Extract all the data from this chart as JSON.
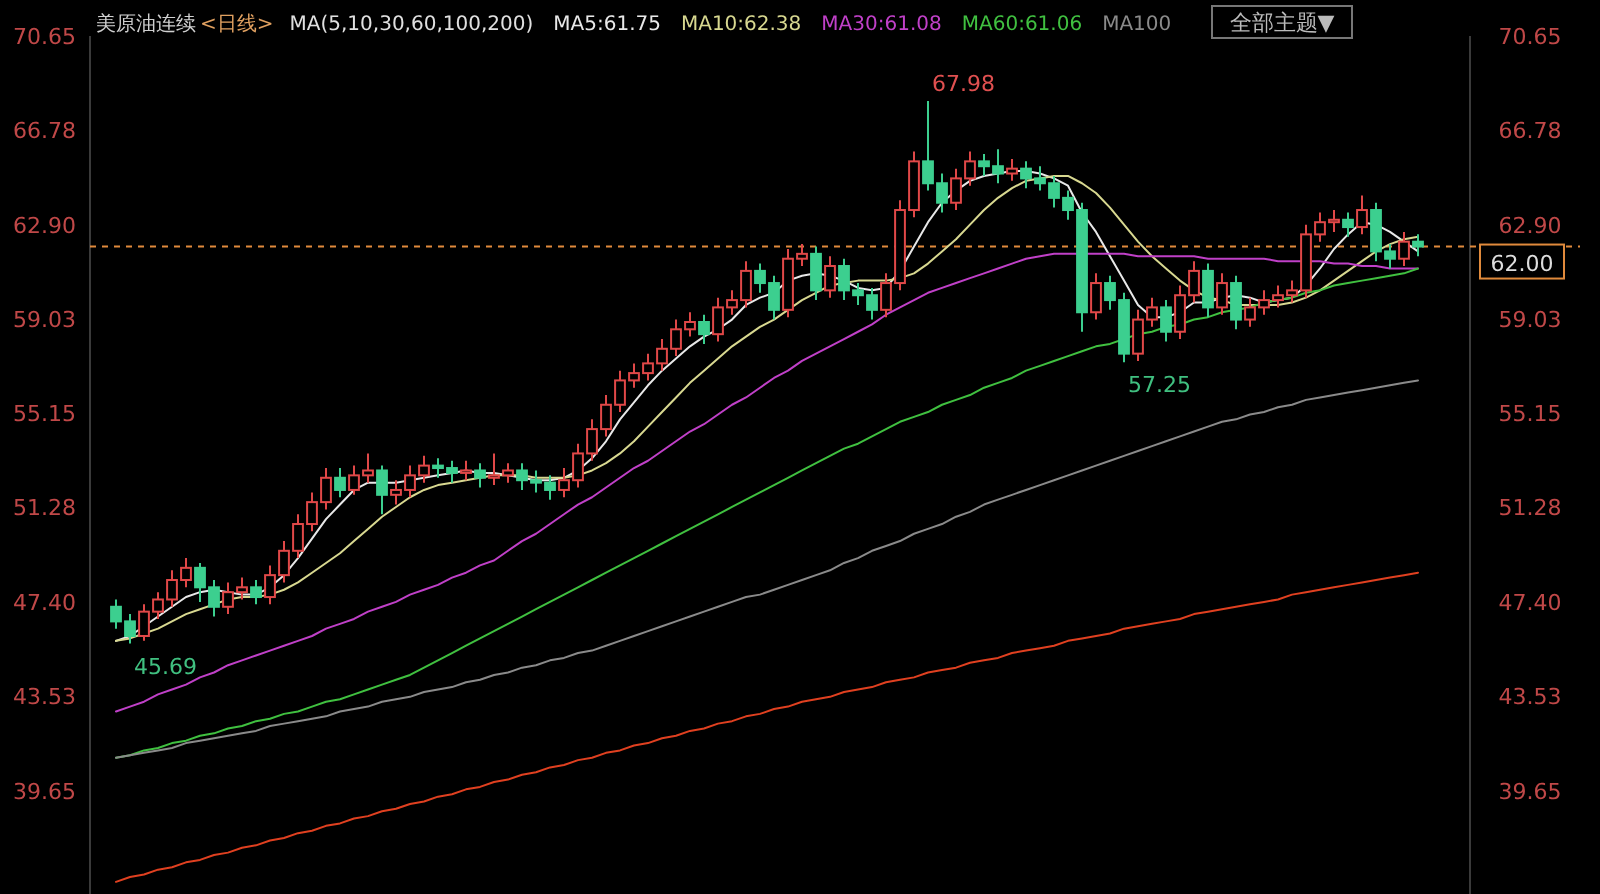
{
  "chart_data": {
    "type": "candlestick",
    "title": "美原油连续",
    "subtitle": "<日线>",
    "annotations": [
      "MA(5,10,30,60,100,200)",
      "全部主题▼",
      "67.98",
      "45.69",
      "57.25"
    ],
    "categories": [
      null,
      null,
      null,
      null,
      null,
      null,
      null,
      null,
      null,
      null,
      null,
      null,
      null,
      null,
      null,
      null,
      null,
      null,
      null,
      null,
      null,
      null,
      null,
      null,
      null,
      null,
      null,
      null,
      null,
      null,
      null,
      null,
      null,
      null,
      null,
      null,
      null,
      null,
      null,
      null,
      null,
      null,
      null,
      null,
      null,
      null,
      null,
      null,
      null,
      null,
      null,
      null,
      null,
      null,
      null,
      null,
      null,
      null,
      null,
      null,
      null,
      null,
      null,
      null,
      null,
      null,
      null,
      null,
      null,
      null,
      null,
      null,
      null,
      null,
      null,
      null,
      null,
      null,
      null,
      null,
      null,
      null,
      null,
      null,
      null,
      null,
      null,
      null,
      null,
      null,
      null,
      null,
      null,
      null
    ],
    "ohlc": [
      [
        47.2,
        47.5,
        46.3,
        46.6
      ],
      [
        46.6,
        46.9,
        45.69,
        46.0
      ],
      [
        46.0,
        47.3,
        45.8,
        47.0
      ],
      [
        47.0,
        47.8,
        46.7,
        47.5
      ],
      [
        47.5,
        48.7,
        47.2,
        48.3
      ],
      [
        48.3,
        49.2,
        48.0,
        48.8
      ],
      [
        48.8,
        49.0,
        47.4,
        48.0
      ],
      [
        48.0,
        48.3,
        46.8,
        47.2
      ],
      [
        47.2,
        48.2,
        46.9,
        47.8
      ],
      [
        47.8,
        48.4,
        47.5,
        48.0
      ],
      [
        48.0,
        48.3,
        47.3,
        47.6
      ],
      [
        47.6,
        48.9,
        47.3,
        48.5
      ],
      [
        48.5,
        49.9,
        48.2,
        49.5
      ],
      [
        49.5,
        51.0,
        49.2,
        50.6
      ],
      [
        50.6,
        51.9,
        50.3,
        51.5
      ],
      [
        51.5,
        52.9,
        51.2,
        52.5
      ],
      [
        52.5,
        52.9,
        51.7,
        52.0
      ],
      [
        52.0,
        53.0,
        51.8,
        52.6
      ],
      [
        52.6,
        53.5,
        52.3,
        52.8
      ],
      [
        52.8,
        53.0,
        51.0,
        51.8
      ],
      [
        51.8,
        52.4,
        51.4,
        52.0
      ],
      [
        52.0,
        53.0,
        51.7,
        52.6
      ],
      [
        52.6,
        53.4,
        52.3,
        53.0
      ],
      [
        53.0,
        53.3,
        52.5,
        52.9
      ],
      [
        52.9,
        53.2,
        52.3,
        52.7
      ],
      [
        52.7,
        53.2,
        52.4,
        52.8
      ],
      [
        52.8,
        53.1,
        52.1,
        52.5
      ],
      [
        52.5,
        53.5,
        52.2,
        52.6
      ],
      [
        52.6,
        53.1,
        52.3,
        52.8
      ],
      [
        52.8,
        53.1,
        52.0,
        52.4
      ],
      [
        52.4,
        52.8,
        51.9,
        52.3
      ],
      [
        52.3,
        52.6,
        51.6,
        52.0
      ],
      [
        52.0,
        52.9,
        51.7,
        52.4
      ],
      [
        52.4,
        53.9,
        52.1,
        53.5
      ],
      [
        53.5,
        54.9,
        53.2,
        54.5
      ],
      [
        54.5,
        55.9,
        54.2,
        55.5
      ],
      [
        55.5,
        56.9,
        55.2,
        56.5
      ],
      [
        56.5,
        57.2,
        56.2,
        56.8
      ],
      [
        56.8,
        57.6,
        56.5,
        57.2
      ],
      [
        57.2,
        58.2,
        56.9,
        57.8
      ],
      [
        57.8,
        59.0,
        57.5,
        58.6
      ],
      [
        58.6,
        59.3,
        58.3,
        58.9
      ],
      [
        58.9,
        59.2,
        58.0,
        58.4
      ],
      [
        58.4,
        59.9,
        58.1,
        59.5
      ],
      [
        59.5,
        60.2,
        59.2,
        59.8
      ],
      [
        59.8,
        61.4,
        59.5,
        61.0
      ],
      [
        61.0,
        61.3,
        60.1,
        60.5
      ],
      [
        60.5,
        60.8,
        59.0,
        59.4
      ],
      [
        59.4,
        61.9,
        59.1,
        61.5
      ],
      [
        61.5,
        62.1,
        61.2,
        61.7
      ],
      [
        61.7,
        62.0,
        59.8,
        60.2
      ],
      [
        60.2,
        61.6,
        59.9,
        61.2
      ],
      [
        61.2,
        61.5,
        59.8,
        60.2
      ],
      [
        60.2,
        60.5,
        59.6,
        60.0
      ],
      [
        60.0,
        60.3,
        59.0,
        59.4
      ],
      [
        59.4,
        60.9,
        59.1,
        60.5
      ],
      [
        60.5,
        63.9,
        60.2,
        63.5
      ],
      [
        63.5,
        65.9,
        63.2,
        65.5
      ],
      [
        65.5,
        67.98,
        64.3,
        64.6
      ],
      [
        64.6,
        65.0,
        63.4,
        63.8
      ],
      [
        63.8,
        65.2,
        63.5,
        64.8
      ],
      [
        64.8,
        65.9,
        64.5,
        65.5
      ],
      [
        65.5,
        65.8,
        64.9,
        65.3
      ],
      [
        65.3,
        66.0,
        64.6,
        65.0
      ],
      [
        65.0,
        65.6,
        64.7,
        65.2
      ],
      [
        65.2,
        65.5,
        64.4,
        64.8
      ],
      [
        64.8,
        65.3,
        64.3,
        64.6
      ],
      [
        64.6,
        64.9,
        63.6,
        64.0
      ],
      [
        64.0,
        64.3,
        63.1,
        63.5
      ],
      [
        63.5,
        63.8,
        58.5,
        59.3
      ],
      [
        59.3,
        60.9,
        59.0,
        60.5
      ],
      [
        60.5,
        60.8,
        59.4,
        59.8
      ],
      [
        59.8,
        60.1,
        57.25,
        57.6
      ],
      [
        57.6,
        59.4,
        57.3,
        59.0
      ],
      [
        59.0,
        59.9,
        58.7,
        59.5
      ],
      [
        59.5,
        59.8,
        58.1,
        58.5
      ],
      [
        58.5,
        60.4,
        58.2,
        60.0
      ],
      [
        60.0,
        61.4,
        59.7,
        61.0
      ],
      [
        61.0,
        61.3,
        59.1,
        59.5
      ],
      [
        59.5,
        60.9,
        59.2,
        60.5
      ],
      [
        60.5,
        60.8,
        58.6,
        59.0
      ],
      [
        59.0,
        59.9,
        58.7,
        59.5
      ],
      [
        59.5,
        60.2,
        59.2,
        59.8
      ],
      [
        59.8,
        60.4,
        59.5,
        60.0
      ],
      [
        60.0,
        60.6,
        59.7,
        60.2
      ],
      [
        60.2,
        62.9,
        59.9,
        62.5
      ],
      [
        62.5,
        63.4,
        62.2,
        63.0
      ],
      [
        63.0,
        63.5,
        62.6,
        63.1
      ],
      [
        63.1,
        63.4,
        62.4,
        62.8
      ],
      [
        62.8,
        64.1,
        62.5,
        63.5
      ],
      [
        63.5,
        63.8,
        61.4,
        61.8
      ],
      [
        61.8,
        62.1,
        61.1,
        61.5
      ],
      [
        61.5,
        62.6,
        61.2,
        62.2
      ],
      [
        62.2,
        62.5,
        61.6,
        62.0
      ]
    ],
    "series": [
      {
        "name": "MA5:61.75",
        "type": "line",
        "color": "#e8e8e8",
        "values": [
          45.8,
          46.0,
          46.4,
          46.8,
          47.2,
          47.6,
          47.8,
          47.9,
          47.8,
          47.7,
          47.7,
          48.0,
          48.5,
          49.2,
          50.0,
          50.8,
          51.4,
          52.0,
          52.3,
          52.3,
          52.3,
          52.4,
          52.5,
          52.6,
          52.7,
          52.8,
          52.7,
          52.7,
          52.6,
          52.5,
          52.4,
          52.4,
          52.5,
          52.8,
          53.3,
          54.0,
          54.9,
          55.6,
          56.3,
          56.9,
          57.4,
          57.9,
          58.3,
          58.6,
          59.0,
          59.6,
          59.9,
          60.1,
          60.6,
          60.8,
          60.9,
          60.8,
          60.6,
          60.3,
          60.2,
          60.3,
          61.0,
          62.0,
          63.0,
          63.8,
          64.3,
          64.7,
          64.9,
          65.0,
          65.1,
          65.1,
          65.0,
          64.8,
          64.5,
          63.4,
          62.6,
          61.6,
          60.6,
          59.6,
          59.1,
          59.1,
          59.3,
          59.7,
          59.7,
          59.9,
          60.0,
          59.9,
          59.7,
          59.8,
          59.9,
          60.4,
          61.1,
          61.9,
          62.5,
          63.0,
          62.9,
          62.6,
          62.2,
          61.8
        ]
      },
      {
        "name": "MA10:62.38",
        "type": "line",
        "color": "#d8d890",
        "values": [
          45.8,
          45.9,
          46.1,
          46.3,
          46.6,
          46.9,
          47.1,
          47.3,
          47.5,
          47.6,
          47.6,
          47.7,
          47.9,
          48.2,
          48.6,
          49.0,
          49.4,
          49.9,
          50.4,
          50.9,
          51.3,
          51.7,
          52.0,
          52.2,
          52.3,
          52.4,
          52.5,
          52.6,
          52.6,
          52.6,
          52.5,
          52.5,
          52.5,
          52.6,
          52.8,
          53.1,
          53.5,
          54.0,
          54.6,
          55.2,
          55.8,
          56.4,
          56.9,
          57.4,
          57.9,
          58.3,
          58.7,
          59.0,
          59.4,
          59.8,
          60.1,
          60.4,
          60.5,
          60.6,
          60.6,
          60.6,
          60.7,
          60.9,
          61.3,
          61.8,
          62.3,
          62.9,
          63.5,
          64.0,
          64.4,
          64.7,
          64.8,
          64.9,
          64.9,
          64.6,
          64.2,
          63.6,
          62.9,
          62.2,
          61.6,
          61.1,
          60.6,
          60.2,
          59.9,
          59.8,
          59.6,
          59.6,
          59.6,
          59.6,
          59.7,
          59.9,
          60.2,
          60.6,
          61.0,
          61.4,
          61.8,
          62.1,
          62.3,
          62.4
        ]
      },
      {
        "name": "MA30:61.08",
        "type": "line",
        "color": "#c040c8",
        "values": [
          42.9,
          43.1,
          43.3,
          43.6,
          43.8,
          44.0,
          44.3,
          44.5,
          44.8,
          45.0,
          45.2,
          45.4,
          45.6,
          45.8,
          46.0,
          46.3,
          46.5,
          46.7,
          47.0,
          47.2,
          47.4,
          47.7,
          47.9,
          48.1,
          48.4,
          48.6,
          48.9,
          49.1,
          49.5,
          49.9,
          50.2,
          50.6,
          51.0,
          51.4,
          51.7,
          52.1,
          52.5,
          52.9,
          53.2,
          53.6,
          54.0,
          54.4,
          54.7,
          55.1,
          55.5,
          55.8,
          56.2,
          56.6,
          56.9,
          57.3,
          57.6,
          57.9,
          58.2,
          58.5,
          58.8,
          59.2,
          59.5,
          59.8,
          60.1,
          60.3,
          60.5,
          60.7,
          60.9,
          61.1,
          61.3,
          61.5,
          61.6,
          61.7,
          61.7,
          61.7,
          61.7,
          61.7,
          61.7,
          61.6,
          61.6,
          61.6,
          61.6,
          61.6,
          61.5,
          61.5,
          61.5,
          61.5,
          61.5,
          61.4,
          61.4,
          61.4,
          61.4,
          61.3,
          61.3,
          61.2,
          61.2,
          61.1,
          61.1,
          61.1
        ]
      },
      {
        "name": "MA60:61.06",
        "type": "line",
        "color": "#40c040",
        "values": [
          41.0,
          41.1,
          41.3,
          41.4,
          41.6,
          41.7,
          41.9,
          42.0,
          42.2,
          42.3,
          42.5,
          42.6,
          42.8,
          42.9,
          43.1,
          43.3,
          43.4,
          43.6,
          43.8,
          44.0,
          44.2,
          44.4,
          44.7,
          45.0,
          45.3,
          45.6,
          45.9,
          46.2,
          46.5,
          46.8,
          47.1,
          47.4,
          47.7,
          48.0,
          48.3,
          48.6,
          48.9,
          49.2,
          49.5,
          49.8,
          50.1,
          50.4,
          50.7,
          51.0,
          51.3,
          51.6,
          51.9,
          52.2,
          52.5,
          52.8,
          53.1,
          53.4,
          53.7,
          53.9,
          54.2,
          54.5,
          54.8,
          55.0,
          55.2,
          55.5,
          55.7,
          55.9,
          56.2,
          56.4,
          56.6,
          56.9,
          57.1,
          57.3,
          57.5,
          57.7,
          57.9,
          58.0,
          58.2,
          58.4,
          58.5,
          58.7,
          58.8,
          59.0,
          59.1,
          59.3,
          59.4,
          59.5,
          59.7,
          59.8,
          59.9,
          60.1,
          60.2,
          60.4,
          60.5,
          60.6,
          60.7,
          60.8,
          60.9,
          61.1
        ]
      },
      {
        "name": "MA100",
        "type": "line",
        "color": "#8a8a8a",
        "values": [
          41.0,
          41.1,
          41.2,
          41.3,
          41.4,
          41.6,
          41.7,
          41.8,
          41.9,
          42.0,
          42.1,
          42.3,
          42.4,
          42.5,
          42.6,
          42.7,
          42.9,
          43.0,
          43.1,
          43.3,
          43.4,
          43.5,
          43.7,
          43.8,
          43.9,
          44.1,
          44.2,
          44.4,
          44.5,
          44.7,
          44.8,
          45.0,
          45.1,
          45.3,
          45.4,
          45.6,
          45.8,
          46.0,
          46.2,
          46.4,
          46.6,
          46.8,
          47.0,
          47.2,
          47.4,
          47.6,
          47.7,
          47.9,
          48.1,
          48.3,
          48.5,
          48.7,
          49.0,
          49.2,
          49.5,
          49.7,
          49.9,
          50.2,
          50.4,
          50.6,
          50.9,
          51.1,
          51.4,
          51.6,
          51.8,
          52.0,
          52.2,
          52.4,
          52.6,
          52.8,
          53.0,
          53.2,
          53.4,
          53.6,
          53.8,
          54.0,
          54.2,
          54.4,
          54.6,
          54.8,
          54.9,
          55.1,
          55.2,
          55.4,
          55.5,
          55.7,
          55.8,
          55.9,
          56.0,
          56.1,
          56.2,
          56.3,
          56.4,
          56.5
        ]
      },
      {
        "type": "line",
        "color": "#e04020",
        "values": [
          35.9,
          36.1,
          36.2,
          36.4,
          36.5,
          36.7,
          36.8,
          37.0,
          37.1,
          37.3,
          37.4,
          37.6,
          37.7,
          37.9,
          38.0,
          38.2,
          38.3,
          38.5,
          38.6,
          38.8,
          38.9,
          39.1,
          39.2,
          39.4,
          39.5,
          39.7,
          39.8,
          40.0,
          40.1,
          40.3,
          40.4,
          40.6,
          40.7,
          40.9,
          41.0,
          41.2,
          41.3,
          41.5,
          41.6,
          41.8,
          41.9,
          42.1,
          42.2,
          42.4,
          42.5,
          42.7,
          42.8,
          43.0,
          43.1,
          43.3,
          43.4,
          43.5,
          43.7,
          43.8,
          43.9,
          44.1,
          44.2,
          44.3,
          44.5,
          44.6,
          44.7,
          44.9,
          45.0,
          45.1,
          45.3,
          45.4,
          45.5,
          45.6,
          45.8,
          45.9,
          46.0,
          46.1,
          46.3,
          46.4,
          46.5,
          46.6,
          46.7,
          46.9,
          47.0,
          47.1,
          47.2,
          47.3,
          47.4,
          47.5,
          47.7,
          47.8,
          47.9,
          48.0,
          48.1,
          48.2,
          48.3,
          48.4,
          48.5,
          48.6
        ]
      }
    ],
    "ylim": [
      35.4,
      70.65
    ],
    "yticks": [
      70.65,
      66.78,
      {
        "value": 62.9,
        "label": "62.90"
      },
      59.03,
      55.15,
      51.28,
      {
        "value": 47.4,
        "label": "47.40"
      },
      43.53,
      39.65
    ],
    "y2lim": [
      35.4,
      70.65
    ],
    "y2ticks": [
      70.65,
      66.78,
      {
        "value": 62.9,
        "label": "62.90"
      },
      59.03,
      55.15,
      51.28,
      {
        "value": 47.4,
        "label": "47.40"
      },
      43.53,
      39.65
    ],
    "ref_lines": [
      {
        "axis": "y2",
        "value": 62,
        "label": "62.00",
        "color": "#e08a3c",
        "line_style": "dashed"
      }
    ],
    "legend": "top",
    "grid": false
  }
}
